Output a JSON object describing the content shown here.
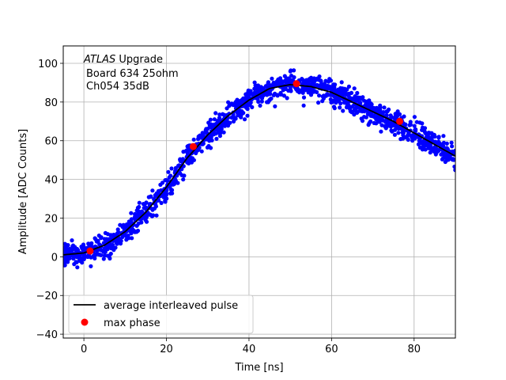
{
  "chart_data": {
    "type": "scatter",
    "xlabel": "Time [ns]",
    "ylabel": "Amplitude [ADC Counts]",
    "xlim": [
      -5,
      90
    ],
    "ylim": [
      -42,
      109
    ],
    "xticks": [
      0,
      20,
      40,
      60,
      80
    ],
    "yticks": [
      -40,
      -20,
      0,
      20,
      40,
      60,
      80,
      100
    ],
    "grid": true,
    "legend_position": "lower-left",
    "annotation": {
      "line1_italic": "ATLAS",
      "line1_rest": " Upgrade",
      "line2": "Board 634 25ohm",
      "line3": "Ch054 35dB"
    },
    "colors": {
      "samples": "#0000ff",
      "average": "#000000",
      "max_phase": "#ff0000"
    },
    "series": [
      {
        "name": "",
        "kind": "samples",
        "model": "noisy samples scattered around the average interleaved pulse",
        "x_range": [
          -5,
          90
        ],
        "noise_amplitude": 5
      },
      {
        "name": "average interleaved pulse",
        "kind": "line",
        "x": [
          -5,
          0,
          5,
          10,
          15,
          20,
          25,
          30,
          35,
          40,
          45,
          50,
          55,
          60,
          65,
          70,
          75,
          80,
          85,
          90
        ],
        "y": [
          1,
          2,
          6,
          13,
          23,
          36,
          51,
          63,
          73,
          81,
          87,
          89,
          88,
          85,
          80,
          75,
          70,
          64,
          58,
          52
        ]
      },
      {
        "name": "max phase",
        "kind": "points",
        "x": [
          1.5,
          26.5,
          51.5,
          76.5
        ],
        "y": [
          3,
          57,
          89.5,
          70
        ]
      }
    ]
  }
}
